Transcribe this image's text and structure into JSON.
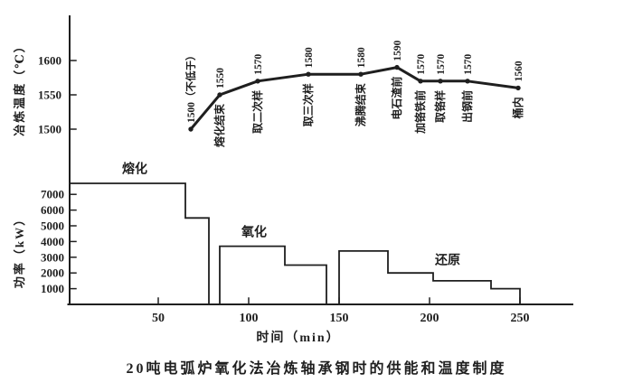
{
  "figure": {
    "caption": "20吨电弧炉氧化法冶炼轴承钢时的供能和温度制度",
    "axes": {
      "temp_label": "冶炼温度（℃）",
      "power_label": "功率（kW）",
      "time_label": "时间（min）"
    },
    "colors": {
      "ink": "#1f1f1f",
      "paper": "#ffffff"
    }
  },
  "chart_data": [
    {
      "type": "line",
      "name": "smelting-temperature-profile",
      "ylabel": "冶炼温度（℃）",
      "xlabel": "时间（min）",
      "yticks": [
        1500,
        1550,
        1600
      ],
      "ylim": [
        1450,
        1660
      ],
      "x": [
        68,
        84,
        105,
        133,
        162,
        182,
        195,
        206,
        221,
        249
      ],
      "y": [
        1500,
        1550,
        1570,
        1580,
        1580,
        1590,
        1570,
        1570,
        1570,
        1560
      ],
      "point_value_labels": [
        "1500（不低于）",
        "1550",
        "1570",
        "1580",
        "1580",
        "1590",
        "1570",
        "1570",
        "1570",
        "1560"
      ],
      "point_event_labels": [
        "",
        "熔化结束",
        "取二次样",
        "取三次样",
        "沸腾结束",
        "电石渣前",
        "加铬铁前",
        "取铬样",
        "出钢前",
        "桶内"
      ]
    },
    {
      "type": "area",
      "name": "power-profile",
      "ylabel": "功率（kW）",
      "xlabel": "时间（min）",
      "yticks": [
        1000,
        2000,
        3000,
        4000,
        5000,
        6000,
        7000
      ],
      "xticks": [
        50,
        100,
        150,
        200,
        250
      ],
      "xlim": [
        0,
        280
      ],
      "ylim": [
        0,
        8200
      ],
      "phases": [
        {
          "label": "熔化",
          "label_t": 30,
          "label_kw": 8350,
          "steps": [
            {
              "from": 0,
              "to": 65,
              "kw": 7700
            },
            {
              "from": 65,
              "to": 78,
              "kw": 5500
            }
          ]
        },
        {
          "label": "氧化",
          "label_t": 96,
          "label_kw": 4350,
          "steps": [
            {
              "from": 84,
              "to": 120,
              "kw": 3700
            },
            {
              "from": 120,
              "to": 143,
              "kw": 2500
            }
          ]
        },
        {
          "label": "还原",
          "label_t": 203,
          "label_kw": 2550,
          "steps": [
            {
              "from": 150,
              "to": 177,
              "kw": 3400
            },
            {
              "from": 177,
              "to": 202,
              "kw": 2000
            },
            {
              "from": 202,
              "to": 234,
              "kw": 1500
            },
            {
              "from": 234,
              "to": 250,
              "kw": 1000
            }
          ]
        }
      ]
    }
  ]
}
